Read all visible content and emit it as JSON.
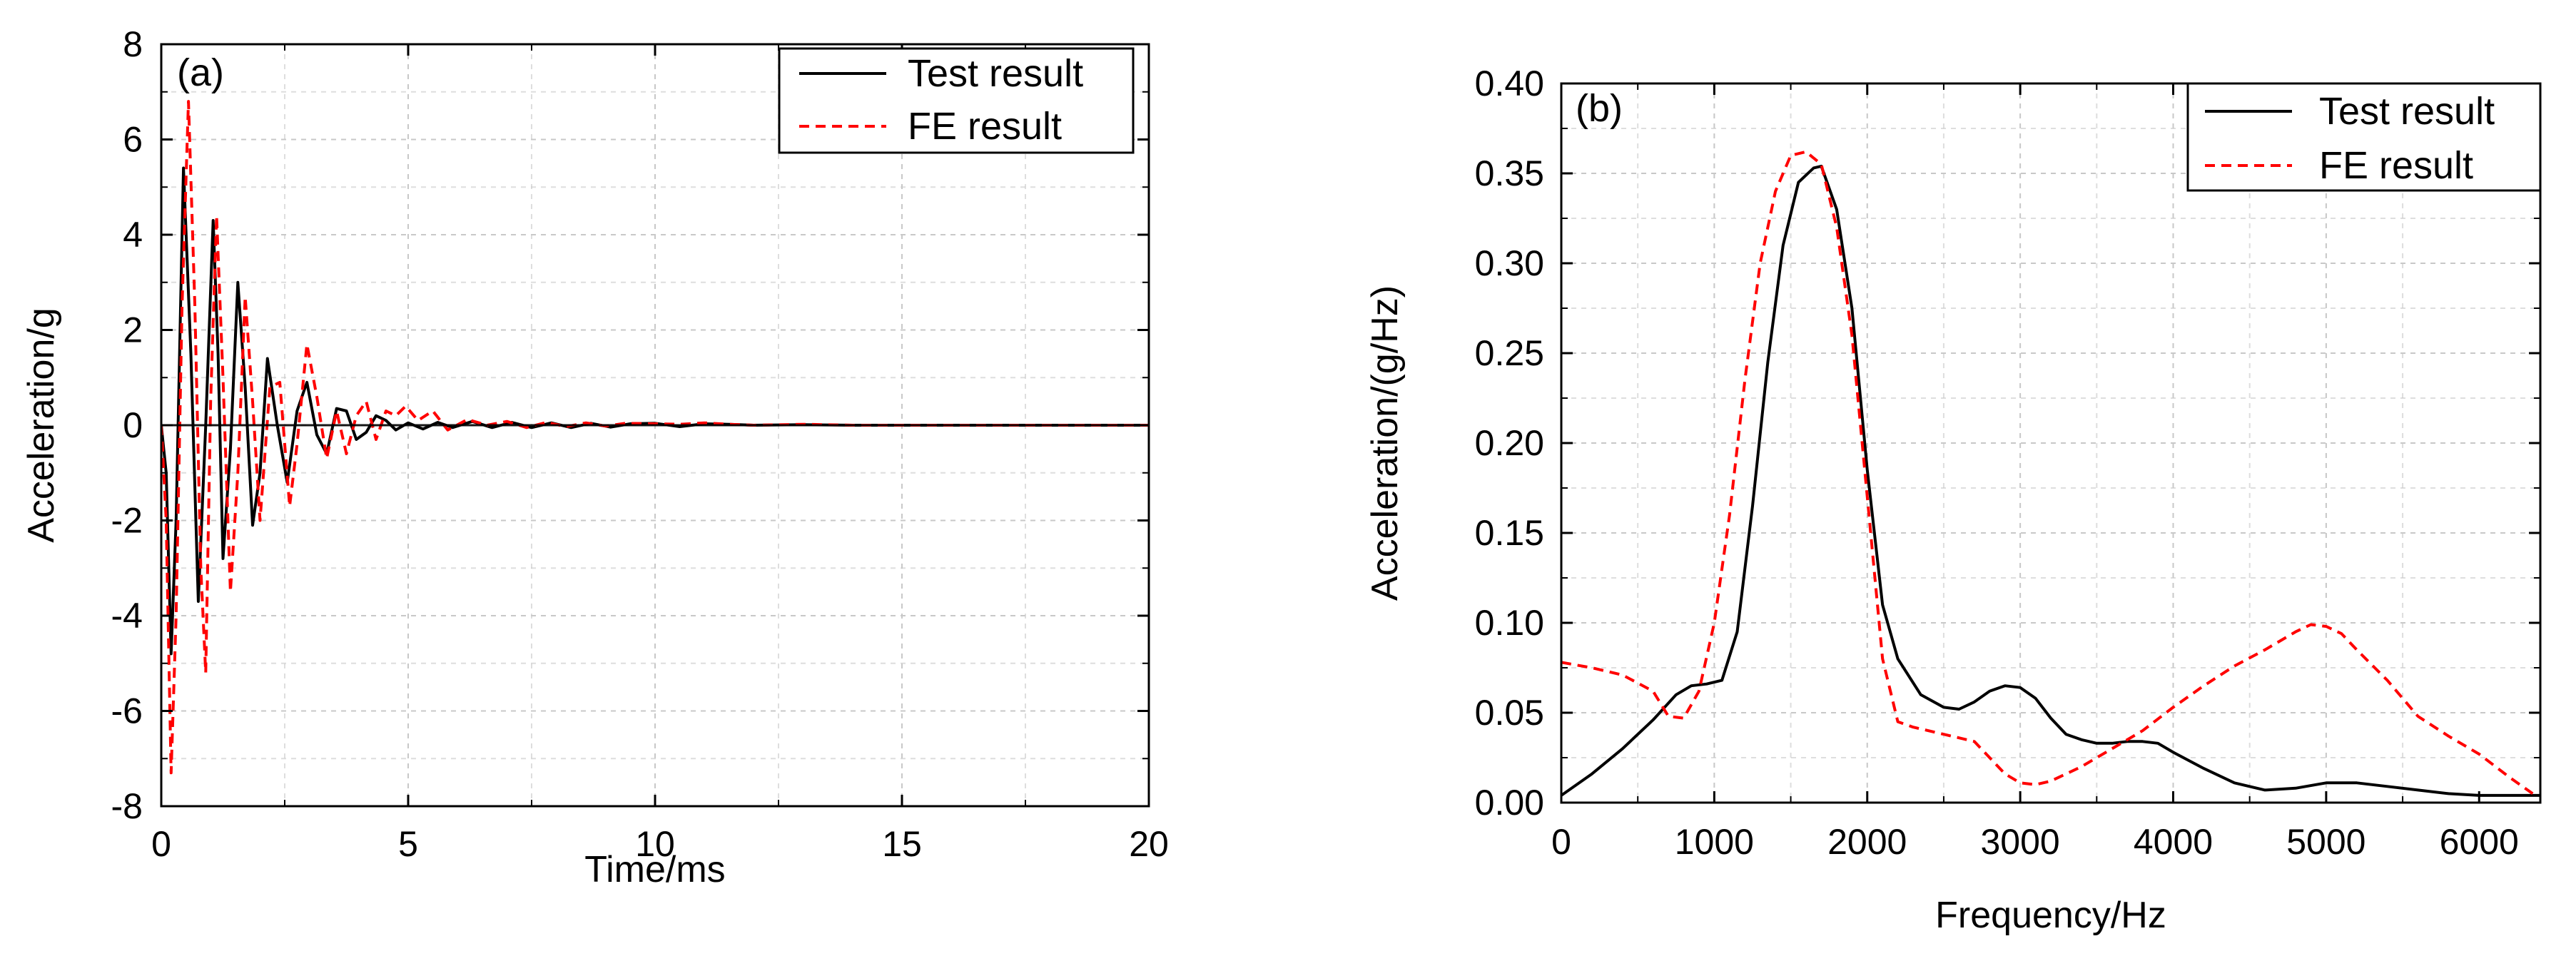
{
  "chart_data": [
    {
      "type": "line",
      "panel_label": "(a)",
      "xlabel": "Time/ms",
      "ylabel": "Acceleration/g",
      "xlim": [
        0,
        20
      ],
      "ylim": [
        -8,
        8
      ],
      "xticks": [
        0,
        5,
        10,
        15,
        20
      ],
      "yticks": [
        -8,
        -6,
        -4,
        -2,
        0,
        2,
        4,
        6,
        8
      ],
      "xtick_labels": [
        "0",
        "5",
        "10",
        "15",
        "20"
      ],
      "ytick_labels": [
        "-8",
        "-6",
        "-4",
        "-2",
        "0",
        "2",
        "4",
        "6",
        "8"
      ],
      "grid": true,
      "legend_position": "top-right",
      "series": [
        {
          "name": "Test result",
          "color": "#000000",
          "dash": "solid",
          "x": [
            0,
            0.1,
            0.2,
            0.3,
            0.45,
            0.6,
            0.75,
            0.9,
            1.05,
            1.15,
            1.25,
            1.4,
            1.55,
            1.7,
            1.85,
            2.0,
            2.15,
            2.35,
            2.55,
            2.75,
            2.95,
            3.15,
            3.35,
            3.55,
            3.75,
            3.95,
            4.15,
            4.35,
            4.55,
            4.75,
            5.0,
            5.3,
            5.6,
            5.9,
            6.3,
            6.7,
            7.1,
            7.5,
            7.9,
            8.3,
            8.7,
            9.1,
            9.5,
            10.0,
            10.5,
            11.0,
            11.5,
            12.0,
            13.0,
            14.0,
            16.0,
            18.0,
            20.0
          ],
          "values": [
            0,
            -1.0,
            -4.8,
            -2.0,
            5.4,
            1.5,
            -3.7,
            0.0,
            4.3,
            1.5,
            -2.8,
            -0.5,
            3.0,
            0.8,
            -2.1,
            -1.0,
            1.4,
            0.0,
            -1.2,
            0.3,
            0.9,
            -0.2,
            -0.6,
            0.35,
            0.3,
            -0.3,
            -0.15,
            0.2,
            0.1,
            -0.1,
            0.05,
            -0.08,
            0.06,
            -0.05,
            0.08,
            -0.05,
            0.06,
            -0.05,
            0.05,
            -0.05,
            0.04,
            -0.04,
            0.03,
            0.04,
            -0.03,
            0.03,
            0.02,
            0.0,
            0.01,
            0.0,
            0.0,
            0.0,
            0.0
          ]
        },
        {
          "name": "FE result",
          "color": "#ff0000",
          "dash": "dashed",
          "x": [
            0,
            0.1,
            0.2,
            0.3,
            0.42,
            0.55,
            0.68,
            0.8,
            0.9,
            1.0,
            1.12,
            1.25,
            1.4,
            1.55,
            1.7,
            1.85,
            2.0,
            2.2,
            2.4,
            2.6,
            2.75,
            2.95,
            3.15,
            3.35,
            3.55,
            3.75,
            3.95,
            4.15,
            4.35,
            4.55,
            4.75,
            4.95,
            5.2,
            5.5,
            5.8,
            6.2,
            6.6,
            7.0,
            7.4,
            7.8,
            8.2,
            8.6,
            9.0,
            9.4,
            10.0,
            10.5,
            11.0,
            11.5,
            12.0,
            13.0,
            14.0,
            16.0,
            18.0,
            20.0
          ],
          "values": [
            0,
            -2.0,
            -7.3,
            -4.0,
            2.5,
            6.8,
            2.5,
            -3.0,
            -5.2,
            0.5,
            4.4,
            1.0,
            -3.5,
            -1.0,
            2.7,
            0.5,
            -2.0,
            0.8,
            0.9,
            -1.7,
            -0.4,
            1.7,
            0.6,
            -0.7,
            0.3,
            -0.6,
            0.2,
            0.5,
            -0.3,
            0.3,
            0.2,
            0.4,
            0.1,
            0.3,
            -0.1,
            0.12,
            0.0,
            0.08,
            -0.05,
            0.06,
            -0.03,
            0.05,
            -0.02,
            0.04,
            0.03,
            0.02,
            0.05,
            0.02,
            0.0,
            0.02,
            0.0,
            0.0,
            0.0,
            0.0
          ]
        }
      ]
    },
    {
      "type": "line",
      "panel_label": "(b)",
      "xlabel": "Frequency/Hz",
      "ylabel": "Acceleration/(g/Hz)",
      "xlim": [
        0,
        6400
      ],
      "ylim": [
        0,
        0.4
      ],
      "xticks": [
        0,
        1000,
        2000,
        3000,
        4000,
        5000,
        6000
      ],
      "yticks": [
        0,
        0.05,
        0.1,
        0.15,
        0.2,
        0.25,
        0.3,
        0.35,
        0.4
      ],
      "xtick_labels": [
        "0",
        "1000",
        "2000",
        "3000",
        "4000",
        "5000",
        "6000"
      ],
      "ytick_labels": [
        "0.00",
        "0.05",
        "0.10",
        "0.15",
        "0.20",
        "0.25",
        "0.30",
        "0.35",
        "0.40"
      ],
      "grid": true,
      "legend_position": "top-right",
      "series": [
        {
          "name": "Test result",
          "color": "#000000",
          "dash": "solid",
          "x": [
            0,
            200,
            400,
            600,
            750,
            850,
            950,
            1050,
            1150,
            1250,
            1350,
            1450,
            1550,
            1650,
            1700,
            1800,
            1900,
            2000,
            2100,
            2200,
            2350,
            2500,
            2600,
            2700,
            2800,
            2900,
            3000,
            3100,
            3200,
            3300,
            3400,
            3500,
            3600,
            3700,
            3800,
            3900,
            4000,
            4200,
            4400,
            4600,
            4800,
            5000,
            5200,
            5400,
            5600,
            5800,
            6000,
            6200,
            6400
          ],
          "values": [
            0.004,
            0.016,
            0.03,
            0.046,
            0.06,
            0.065,
            0.066,
            0.068,
            0.095,
            0.165,
            0.245,
            0.31,
            0.345,
            0.353,
            0.354,
            0.33,
            0.275,
            0.185,
            0.11,
            0.08,
            0.06,
            0.053,
            0.052,
            0.056,
            0.062,
            0.065,
            0.064,
            0.058,
            0.047,
            0.038,
            0.035,
            0.033,
            0.033,
            0.034,
            0.034,
            0.033,
            0.028,
            0.019,
            0.011,
            0.007,
            0.008,
            0.011,
            0.011,
            0.009,
            0.007,
            0.005,
            0.004,
            0.004,
            0.004
          ]
        },
        {
          "name": "FE result",
          "color": "#ff0000",
          "dash": "dashed",
          "x": [
            0,
            200,
            400,
            600,
            700,
            800,
            900,
            1000,
            1100,
            1200,
            1300,
            1400,
            1500,
            1600,
            1700,
            1800,
            1900,
            2000,
            2100,
            2200,
            2300,
            2500,
            2700,
            2800,
            2900,
            3000,
            3100,
            3200,
            3400,
            3600,
            3800,
            4000,
            4200,
            4400,
            4600,
            4800,
            4900,
            5000,
            5100,
            5200,
            5400,
            5600,
            5800,
            6000,
            6200,
            6350
          ],
          "values": [
            0.078,
            0.075,
            0.071,
            0.062,
            0.048,
            0.047,
            0.062,
            0.1,
            0.16,
            0.235,
            0.3,
            0.34,
            0.36,
            0.362,
            0.355,
            0.32,
            0.26,
            0.17,
            0.08,
            0.045,
            0.042,
            0.038,
            0.034,
            0.025,
            0.016,
            0.011,
            0.01,
            0.012,
            0.02,
            0.03,
            0.04,
            0.053,
            0.065,
            0.076,
            0.085,
            0.095,
            0.099,
            0.098,
            0.094,
            0.085,
            0.068,
            0.048,
            0.037,
            0.027,
            0.014,
            0.005
          ]
        }
      ]
    }
  ]
}
